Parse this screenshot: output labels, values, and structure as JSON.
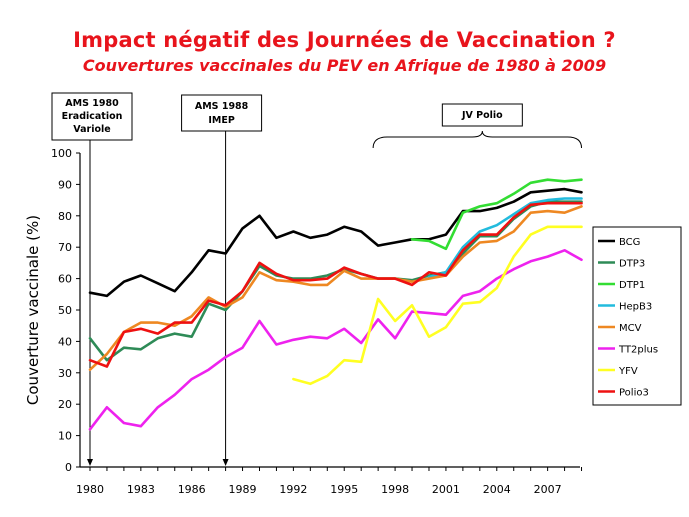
{
  "title": "Impact négatif des Journées de Vaccination ?",
  "subtitle": "Couvertures vaccinales du PEV en Afrique de 1980 à 2009",
  "chart_data": {
    "type": "line",
    "ylabel": "Couverture vaccinale (%)",
    "xlabel": "",
    "ylim": [
      0,
      100
    ],
    "xlim": [
      1980,
      2009
    ],
    "y_ticks": [
      "0",
      "10",
      "20",
      "30",
      "40",
      "50",
      "60",
      "70",
      "80",
      "90",
      "100"
    ],
    "x_tick_labels": [
      "1980",
      "1983",
      "1986",
      "1989",
      "1992",
      "1995",
      "1998",
      "2001",
      "2004",
      "2007"
    ],
    "grid": false,
    "legend_position": "right",
    "annotations": [
      {
        "lines": [
          "AMS 1980",
          "Eradication",
          "Variole"
        ],
        "year": 1980
      },
      {
        "lines": [
          "AMS 1988",
          "IMEP"
        ],
        "year": 1988
      },
      {
        "lines": [
          "JV Polio"
        ],
        "span": [
          1997,
          2009
        ]
      }
    ],
    "series": [
      {
        "name": "BCG",
        "color": "#000000",
        "x": [
          1980,
          1981,
          1982,
          1983,
          1984,
          1985,
          1986,
          1987,
          1988,
          1989,
          1990,
          1991,
          1992,
          1993,
          1994,
          1995,
          1996,
          1997,
          1998,
          1999,
          2000,
          2001,
          2002,
          2003,
          2004,
          2005,
          2006,
          2007,
          2008,
          2009
        ],
        "values": [
          55.5,
          54.5,
          59,
          61,
          58.5,
          56,
          62,
          69,
          68,
          76,
          80,
          73,
          75,
          73,
          74,
          76.5,
          75,
          70.5,
          71.5,
          72.5,
          72.5,
          74,
          81.5,
          81.5,
          82.5,
          84.5,
          87.5,
          88,
          88.5,
          87.5
        ]
      },
      {
        "name": "DTP3",
        "color": "#2e8b57",
        "x": [
          1980,
          1981,
          1982,
          1983,
          1984,
          1985,
          1986,
          1987,
          1988,
          1989,
          1990,
          1991,
          1992,
          1993,
          1994,
          1995,
          1996,
          1997,
          1998,
          1999,
          2000,
          2001,
          2002,
          2003,
          2004,
          2005,
          2006,
          2007,
          2008,
          2009
        ],
        "values": [
          41,
          34,
          38,
          37.5,
          41,
          42.5,
          41.5,
          52,
          50,
          56,
          64,
          61,
          60,
          60,
          61,
          63,
          61.5,
          60,
          60,
          59.5,
          61,
          62,
          68,
          73.5,
          73.5,
          79,
          83,
          84.5,
          84.5,
          84.5
        ]
      },
      {
        "name": "DTP1",
        "color": "#33dd33",
        "x": [
          1999,
          2000,
          2001,
          2002,
          2003,
          2004,
          2005,
          2006,
          2007,
          2008,
          2009
        ],
        "values": [
          72.5,
          72,
          69.5,
          81,
          83,
          84,
          87,
          90.5,
          91.5,
          91,
          91.5
        ]
      },
      {
        "name": "HepB3",
        "color": "#22bbdd",
        "x": [
          2000,
          2001,
          2002,
          2003,
          2004,
          2005,
          2006,
          2007,
          2008,
          2009
        ],
        "values": [
          60.5,
          62,
          70,
          75,
          77,
          80.5,
          84,
          85,
          85.5,
          85.5
        ]
      },
      {
        "name": "MCV",
        "color": "#ee8822",
        "x": [
          1980,
          1981,
          1982,
          1983,
          1984,
          1985,
          1986,
          1987,
          1988,
          1989,
          1990,
          1991,
          1992,
          1993,
          1994,
          1995,
          1996,
          1997,
          1998,
          1999,
          2000,
          2001,
          2002,
          2003,
          2004,
          2005,
          2006,
          2007,
          2008,
          2009
        ],
        "values": [
          31,
          36,
          43,
          46,
          46,
          45,
          48,
          54,
          51,
          54,
          62,
          59.5,
          59,
          58,
          58,
          62.5,
          60,
          60,
          60,
          59,
          60,
          61,
          67,
          71.5,
          72,
          75,
          81,
          81.5,
          81,
          83
        ]
      },
      {
        "name": "TT2plus",
        "color": "#ee22ee",
        "x": [
          1980,
          1981,
          1982,
          1983,
          1984,
          1985,
          1986,
          1987,
          1988,
          1989,
          1990,
          1991,
          1992,
          1993,
          1994,
          1995,
          1996,
          1997,
          1998,
          1999,
          2000,
          2001,
          2002,
          2003,
          2004,
          2005,
          2006,
          2007,
          2008,
          2009
        ],
        "values": [
          12,
          19,
          14,
          13,
          19,
          23,
          28,
          31,
          35,
          38,
          46.5,
          39,
          40.5,
          41.5,
          41,
          44,
          39.5,
          47,
          41,
          49.5,
          49,
          48.5,
          54.5,
          56,
          60,
          63,
          65.5,
          67,
          69,
          66
        ]
      },
      {
        "name": "YFV",
        "color": "#ffff22",
        "x": [
          1992,
          1993,
          1994,
          1995,
          1996,
          1997,
          1998,
          1999,
          2000,
          2001,
          2002,
          2003,
          2004,
          2005,
          2006,
          2007,
          2008,
          2009
        ],
        "values": [
          28,
          26.5,
          29,
          34,
          33.5,
          53.5,
          46.5,
          51.5,
          41.5,
          44.5,
          52,
          52.5,
          57,
          67,
          74,
          76.5,
          76.5,
          76.5
        ]
      },
      {
        "name": "Polio3",
        "color": "#ee1111",
        "x": [
          1980,
          1981,
          1982,
          1983,
          1984,
          1985,
          1986,
          1987,
          1988,
          1989,
          1990,
          1991,
          1992,
          1993,
          1994,
          1995,
          1996,
          1997,
          1998,
          1999,
          2000,
          2001,
          2002,
          2003,
          2004,
          2005,
          2006,
          2007,
          2008,
          2009
        ],
        "values": [
          34,
          32,
          43,
          44,
          42.5,
          46,
          46,
          53,
          51.5,
          56,
          65,
          61.5,
          59.5,
          59.5,
          60,
          63.5,
          61.5,
          60,
          60,
          58,
          62,
          61,
          69,
          74,
          74,
          79.5,
          83.5,
          84,
          84,
          84
        ]
      }
    ]
  }
}
